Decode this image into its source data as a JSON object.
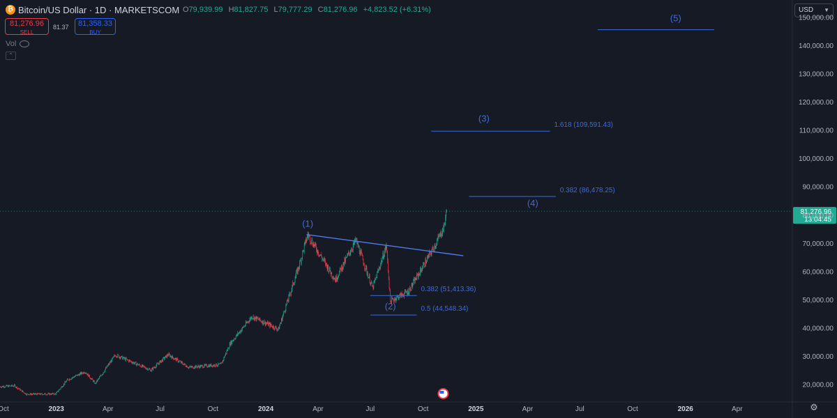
{
  "header": {
    "coin_icon": "bitcoin-icon",
    "title": "Bitcoin/US Dollar · 1D · MARKETSCOM",
    "ohlc": {
      "o_label": "O",
      "o": "79,939.99",
      "h_label": "H",
      "h": "81,827.75",
      "l_label": "L",
      "l": "79,777.29",
      "c_label": "C",
      "c": "81,276.96",
      "change": "+4,823.52 (+6.31%)"
    },
    "sell_price": "81,276.96",
    "sell_label": "SELL",
    "spread": "81.37",
    "buy_price": "81,358.33",
    "buy_label": "BUY",
    "vol_label": "Vol",
    "currency": "USD"
  },
  "colors": {
    "background": "#161a25",
    "up": "#22ab94",
    "down": "#f23645",
    "annotation": "#3d6bdc",
    "last_price_tag": "#22ab94"
  },
  "chart_data": {
    "type": "candlestick",
    "symbol": "Bitcoin/US Dollar",
    "interval": "1D",
    "source": "MARKETSCOM",
    "ylim": [
      14000,
      156000
    ],
    "y_ticks": [
      20000,
      30000,
      40000,
      50000,
      60000,
      70000,
      80000,
      90000,
      100000,
      110000,
      120000,
      130000,
      140000,
      150000
    ],
    "y_tick_labels": [
      "20,000.00",
      "30,000.00",
      "40,000.00",
      "50,000.00",
      "60,000.00",
      "70,000.00",
      "80,000.00",
      "90,000.00",
      "100,000.00",
      "110,000.00",
      "120,000.00",
      "130,000.00",
      "140,000.00",
      "150,000.00"
    ],
    "x_range": [
      "2022-09-25",
      "2026-07-05"
    ],
    "x_ticks": [
      {
        "date": "2022-10-01",
        "label": "Oct"
      },
      {
        "date": "2023-01-01",
        "label": "2023"
      },
      {
        "date": "2023-04-01",
        "label": "Apr"
      },
      {
        "date": "2023-07-01",
        "label": "Jul"
      },
      {
        "date": "2023-10-01",
        "label": "Oct"
      },
      {
        "date": "2024-01-01",
        "label": "2024"
      },
      {
        "date": "2024-04-01",
        "label": "Apr"
      },
      {
        "date": "2024-07-01",
        "label": "Jul"
      },
      {
        "date": "2024-10-01",
        "label": "Oct"
      },
      {
        "date": "2025-01-01",
        "label": "2025"
      },
      {
        "date": "2025-04-01",
        "label": "Apr"
      },
      {
        "date": "2025-07-01",
        "label": "Jul"
      },
      {
        "date": "2025-10-01",
        "label": "Oct"
      },
      {
        "date": "2026-01-01",
        "label": "2026"
      },
      {
        "date": "2026-04-01",
        "label": "Apr"
      }
    ],
    "price_path": [
      [
        "2022-09-25",
        19200
      ],
      [
        "2022-10-20",
        19500
      ],
      [
        "2022-11-10",
        16500
      ],
      [
        "2022-12-31",
        16600
      ],
      [
        "2023-01-20",
        21500
      ],
      [
        "2023-02-20",
        24500
      ],
      [
        "2023-03-10",
        20300
      ],
      [
        "2023-04-14",
        30400
      ],
      [
        "2023-06-15",
        25000
      ],
      [
        "2023-07-15",
        30500
      ],
      [
        "2023-08-20",
        26000
      ],
      [
        "2023-10-15",
        27000
      ],
      [
        "2023-10-31",
        34500
      ],
      [
        "2023-12-08",
        44000
      ],
      [
        "2024-01-23",
        39500
      ],
      [
        "2024-02-28",
        62000
      ],
      [
        "2024-03-14",
        73000
      ],
      [
        "2024-05-01",
        57000
      ],
      [
        "2024-06-06",
        71000
      ],
      [
        "2024-07-05",
        54000
      ],
      [
        "2024-07-29",
        69000
      ],
      [
        "2024-08-05",
        49500
      ],
      [
        "2024-09-06",
        53000
      ],
      [
        "2024-10-20",
        68500
      ],
      [
        "2024-11-06",
        75500
      ],
      [
        "2024-11-11",
        81277
      ]
    ],
    "last_price": {
      "value": 81276.96,
      "label": "81,276.96",
      "countdown": "13:04:45"
    },
    "annotations": [
      {
        "type": "wave_label",
        "text": "(1)",
        "date": "2024-03-14",
        "price": 75800
      },
      {
        "type": "wave_label",
        "text": "(2)",
        "date": "2024-08-05",
        "price": 46500
      },
      {
        "type": "wave_label",
        "text": "(3)",
        "date": "2025-01-15",
        "price": 113000
      },
      {
        "type": "wave_label",
        "text": "(4)",
        "date": "2025-04-10",
        "price": 83000
      },
      {
        "type": "wave_label",
        "text": "(5)",
        "date": "2025-12-15",
        "price": 148500
      },
      {
        "type": "trendline",
        "from": {
          "date": "2024-03-12",
          "price": 73000
        },
        "to": {
          "date": "2024-12-10",
          "price": 65500
        }
      },
      {
        "type": "level",
        "text": "0.382 (51,413.36)",
        "price": 51413.36,
        "from": "2024-07-01",
        "to": "2024-09-20"
      },
      {
        "type": "level",
        "text": "0.5 (44,548.34)",
        "price": 44548.34,
        "from": "2024-07-01",
        "to": "2024-09-20"
      },
      {
        "type": "level",
        "text": "1.618 (109,591.43)",
        "price": 109591.43,
        "from": "2024-10-15",
        "to": "2025-05-10"
      },
      {
        "type": "level",
        "text": "0.382 (86,478.25)",
        "price": 86478.25,
        "from": "2024-12-20",
        "to": "2025-05-20"
      },
      {
        "type": "level",
        "text": "",
        "price": 145500,
        "from": "2025-08-01",
        "to": "2026-02-20"
      }
    ]
  }
}
